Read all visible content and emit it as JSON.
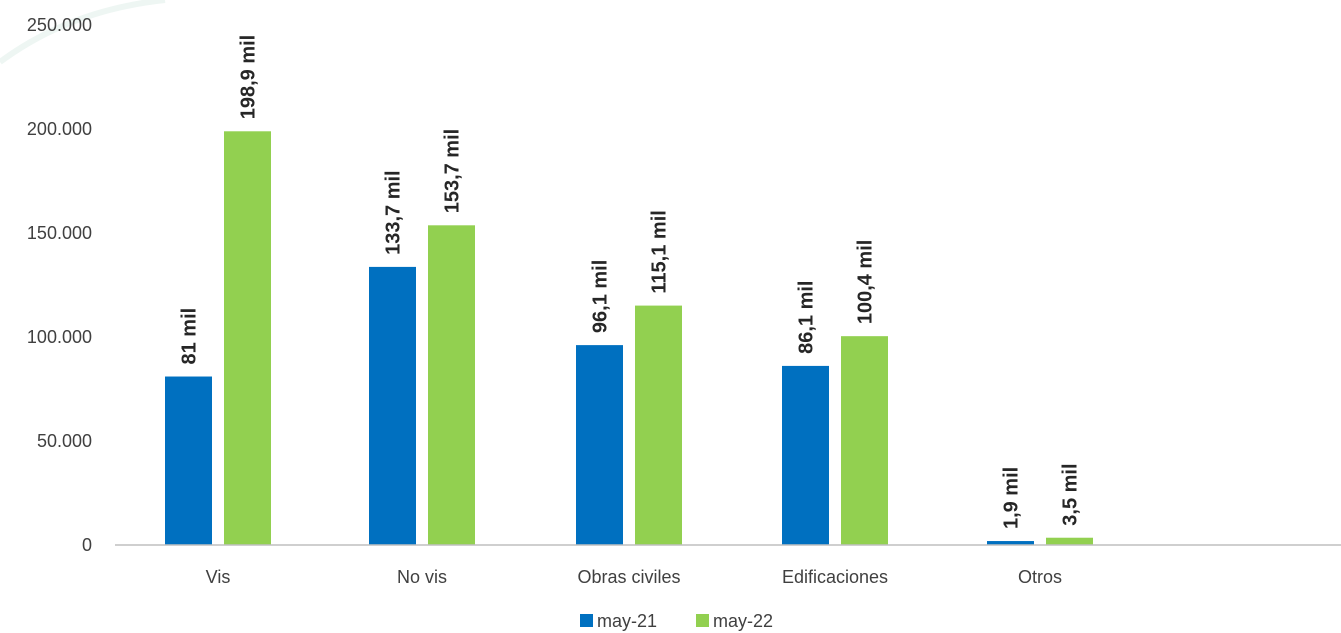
{
  "colors": {
    "series1": "#0070C0",
    "series2": "#92D050",
    "axis": "#BFBFBF",
    "text": "#404040",
    "label": "#262626"
  },
  "chart_data": {
    "type": "bar",
    "categories": [
      "Vis",
      "No vis",
      "Obras civiles",
      "Edificaciones",
      "Otros"
    ],
    "series": [
      {
        "name": "may-21",
        "values": [
          81000,
          133700,
          96100,
          86100,
          1900
        ],
        "labels": [
          "81 mil",
          "133,7 mil",
          "96,1 mil",
          "86,1 mil",
          "1,9 mil"
        ]
      },
      {
        "name": "may-22",
        "values": [
          198900,
          153700,
          115100,
          100400,
          3500
        ],
        "labels": [
          "198,9 mil",
          "153,7 mil",
          "115,1 mil",
          "100,4 mil",
          "3,5 mil"
        ]
      }
    ],
    "yticks": [
      0,
      50000,
      100000,
      150000,
      200000,
      250000
    ],
    "ytick_labels": [
      "0",
      "50.000",
      "100.000",
      "150.000",
      "200.000",
      "250.000"
    ],
    "ylim": [
      0,
      250000
    ],
    "grid": false,
    "legend_position": "bottom"
  }
}
